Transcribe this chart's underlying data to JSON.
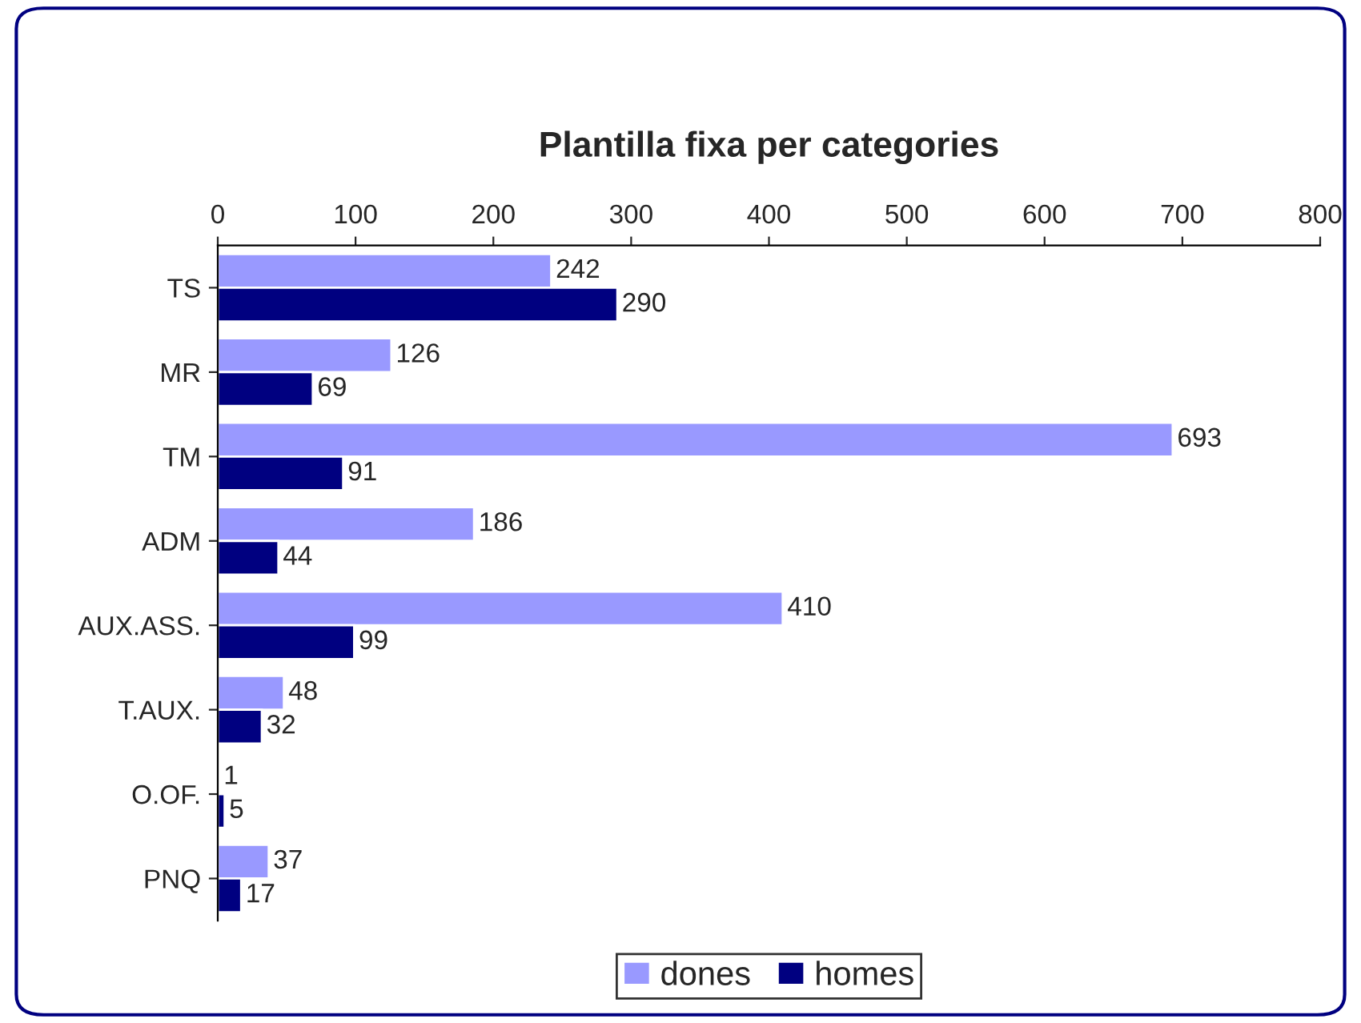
{
  "chart_data": {
    "type": "bar",
    "orientation": "horizontal",
    "title": "Plantilla fixa per categories",
    "categories": [
      "TS",
      "MR",
      "TM",
      "ADM",
      "AUX.ASS.",
      "T.AUX.",
      "O.OF.",
      "PNQ"
    ],
    "series": [
      {
        "name": "dones",
        "color": "#9999ff",
        "values": [
          242,
          126,
          693,
          186,
          410,
          48,
          1,
          37
        ]
      },
      {
        "name": "homes",
        "color": "#000080",
        "values": [
          290,
          69,
          91,
          44,
          99,
          32,
          5,
          17
        ]
      }
    ],
    "xlim": [
      0,
      800
    ],
    "xticks": [
      0,
      100,
      200,
      300,
      400,
      500,
      600,
      700,
      800
    ],
    "data_labels": true,
    "grid": false,
    "legend": "bottom"
  }
}
